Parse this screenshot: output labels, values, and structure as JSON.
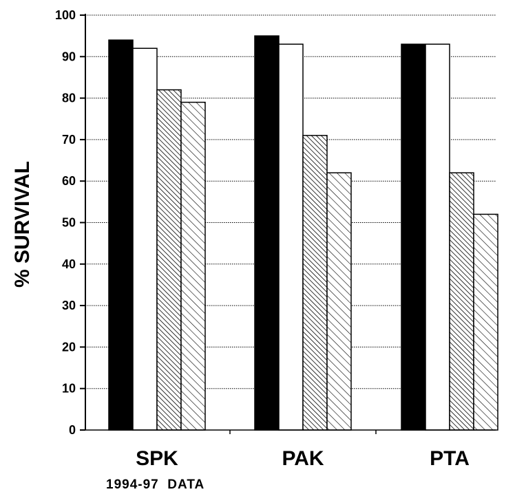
{
  "chart_data": {
    "type": "bar",
    "title": "",
    "xlabel": "",
    "ylabel": "% SURVIVAL",
    "ylim": [
      0,
      100
    ],
    "yticks": [
      0,
      10,
      20,
      30,
      40,
      50,
      60,
      70,
      80,
      90,
      100
    ],
    "grid": true,
    "legend": "none",
    "categories": [
      "SPK",
      "PAK",
      "PTA"
    ],
    "series": [
      {
        "fill": "solid-black",
        "values": [
          94,
          95,
          93
        ]
      },
      {
        "fill": "white",
        "values": [
          92,
          93,
          93
        ]
      },
      {
        "fill": "dense-hatch",
        "values": [
          82,
          71,
          62
        ]
      },
      {
        "fill": "light-hatch",
        "values": [
          79,
          62,
          52
        ]
      }
    ],
    "footnote": "1994-97  DATA"
  }
}
